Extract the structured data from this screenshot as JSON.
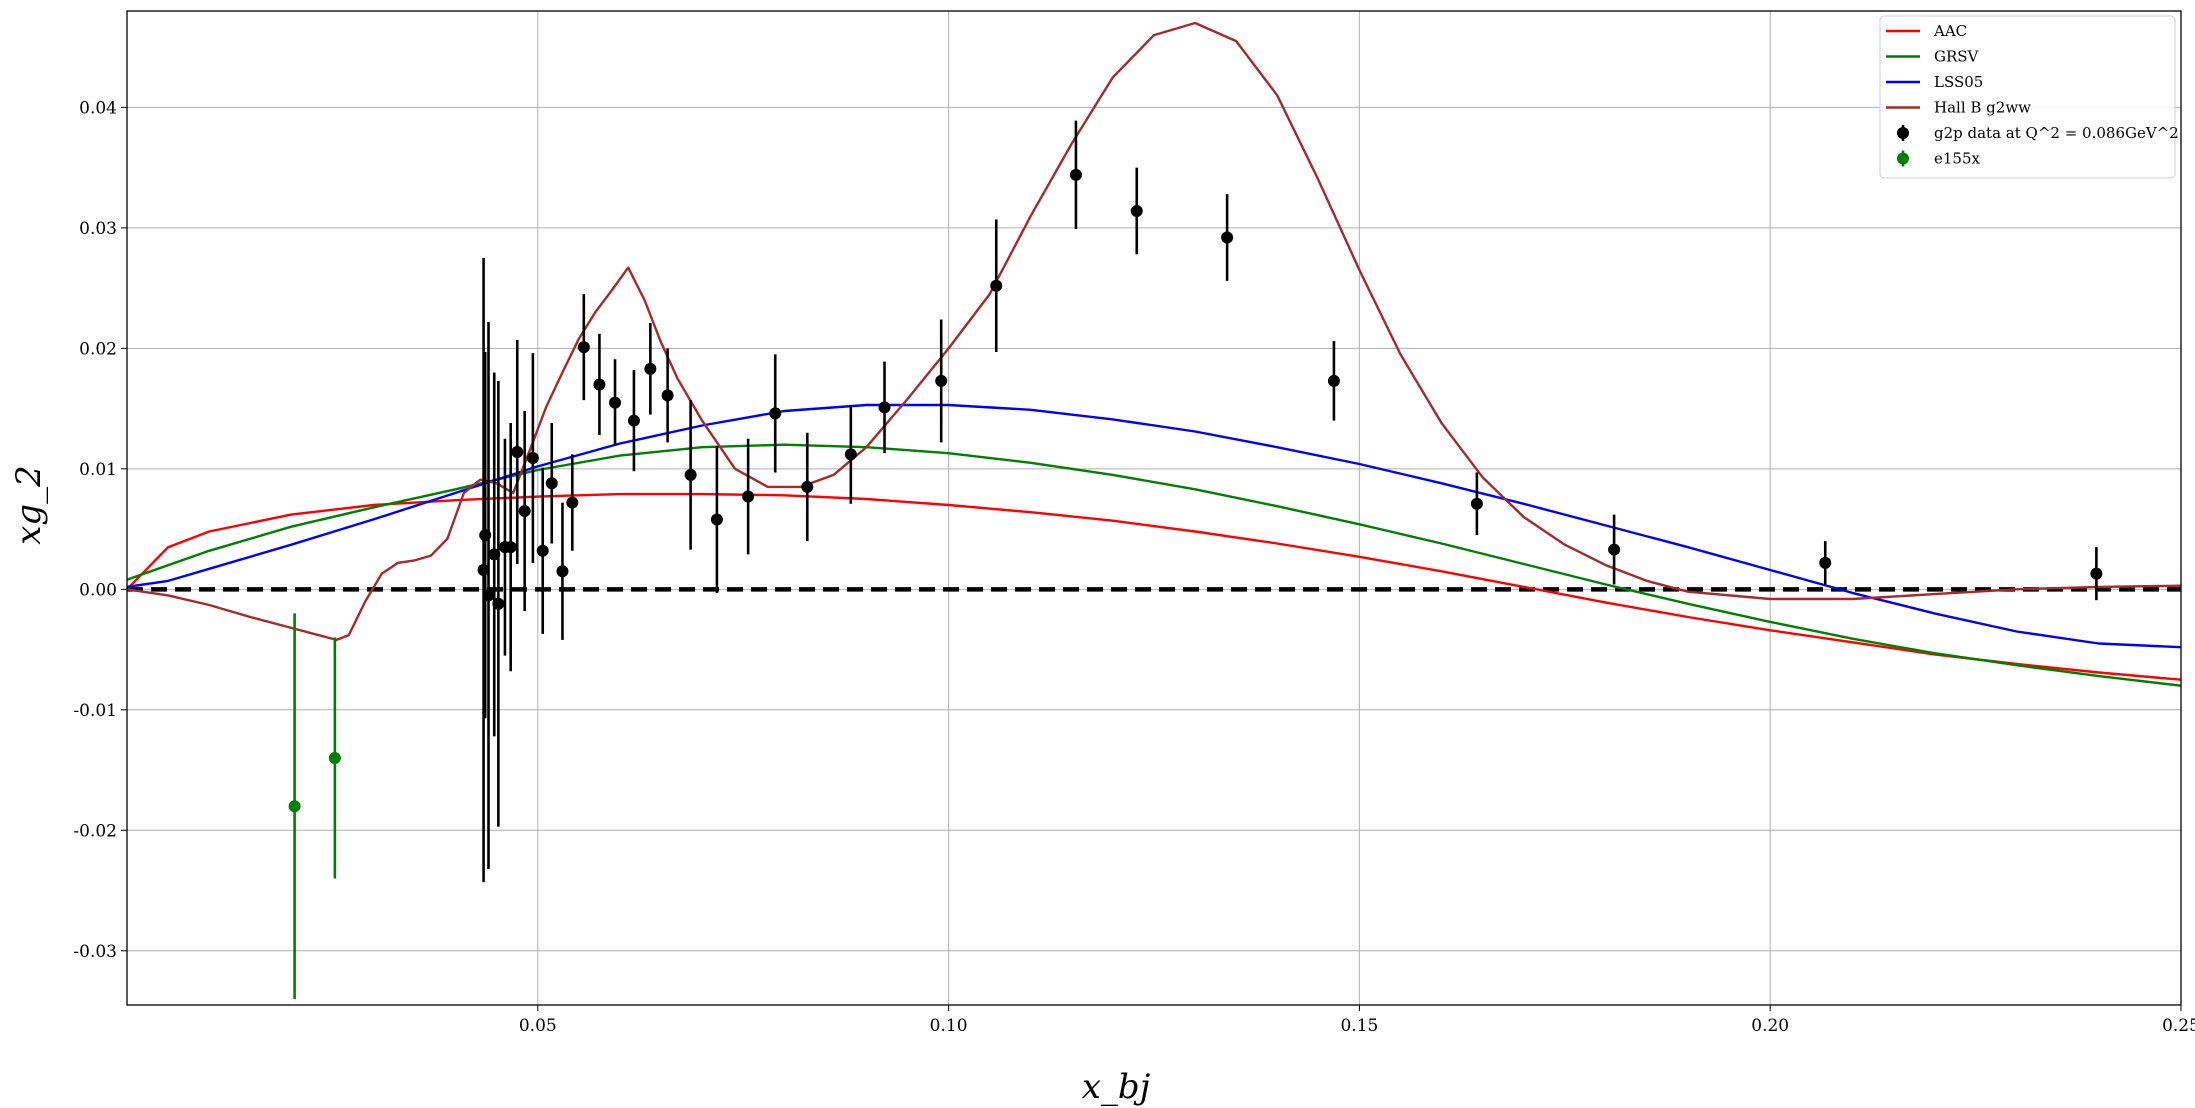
{
  "chart_data": {
    "type": "line",
    "title": "",
    "xlabel": "x_bj",
    "ylabel": "xg_2",
    "xlim": [
      0.0,
      0.25
    ],
    "ylim": [
      -0.0345,
      0.048
    ],
    "grid": true,
    "legend_position": "top-right",
    "x_ticks": [
      {
        "value": 0.05,
        "label": "0.05"
      },
      {
        "value": 0.1,
        "label": "0.10"
      },
      {
        "value": 0.15,
        "label": "0.15"
      },
      {
        "value": 0.2,
        "label": "0.20"
      },
      {
        "value": 0.25,
        "label": "0.25"
      }
    ],
    "y_ticks": [
      {
        "value": 0.04,
        "label": "0.04"
      },
      {
        "value": 0.03,
        "label": "0.03"
      },
      {
        "value": 0.02,
        "label": "0.02"
      },
      {
        "value": 0.01,
        "label": "0.01"
      },
      {
        "value": 0.0,
        "label": "0.00"
      },
      {
        "value": -0.01,
        "label": "-0.01"
      },
      {
        "value": -0.02,
        "label": "-0.02"
      },
      {
        "value": -0.03,
        "label": "-0.03"
      }
    ],
    "zero_line": {
      "y": 0.0,
      "color": "#000000",
      "style": "dashed"
    },
    "series": [
      {
        "name": "AAC",
        "kind": "line",
        "color": "#ff0000",
        "points": [
          [
            0.0,
            0.0
          ],
          [
            0.005,
            0.0035
          ],
          [
            0.01,
            0.0048
          ],
          [
            0.02,
            0.0062
          ],
          [
            0.03,
            0.007
          ],
          [
            0.04,
            0.0074
          ],
          [
            0.05,
            0.0077
          ],
          [
            0.06,
            0.0079
          ],
          [
            0.07,
            0.0079
          ],
          [
            0.08,
            0.0078
          ],
          [
            0.09,
            0.0075
          ],
          [
            0.1,
            0.007
          ],
          [
            0.11,
            0.0064
          ],
          [
            0.12,
            0.0057
          ],
          [
            0.13,
            0.0048
          ],
          [
            0.14,
            0.0038
          ],
          [
            0.15,
            0.0027
          ],
          [
            0.16,
            0.0015
          ],
          [
            0.17,
            0.0002
          ],
          [
            0.18,
            -0.0011
          ],
          [
            0.19,
            -0.0023
          ],
          [
            0.2,
            -0.0034
          ],
          [
            0.21,
            -0.0044
          ],
          [
            0.22,
            -0.0054
          ],
          [
            0.23,
            -0.0062
          ],
          [
            0.24,
            -0.0069
          ],
          [
            0.25,
            -0.0075
          ]
        ]
      },
      {
        "name": "GRSV",
        "kind": "line",
        "color": "#008000",
        "points": [
          [
            0.0,
            0.0008
          ],
          [
            0.01,
            0.0032
          ],
          [
            0.02,
            0.0052
          ],
          [
            0.03,
            0.0068
          ],
          [
            0.04,
            0.0083
          ],
          [
            0.05,
            0.0099
          ],
          [
            0.06,
            0.0111
          ],
          [
            0.07,
            0.0118
          ],
          [
            0.08,
            0.012
          ],
          [
            0.09,
            0.0118
          ],
          [
            0.1,
            0.0113
          ],
          [
            0.11,
            0.0105
          ],
          [
            0.12,
            0.0095
          ],
          [
            0.13,
            0.0083
          ],
          [
            0.14,
            0.0069
          ],
          [
            0.15,
            0.0054
          ],
          [
            0.16,
            0.0038
          ],
          [
            0.17,
            0.0021
          ],
          [
            0.18,
            0.0004
          ],
          [
            0.19,
            -0.0012
          ],
          [
            0.2,
            -0.0027
          ],
          [
            0.21,
            -0.0041
          ],
          [
            0.22,
            -0.0053
          ],
          [
            0.23,
            -0.0063
          ],
          [
            0.24,
            -0.0072
          ],
          [
            0.25,
            -0.008
          ]
        ]
      },
      {
        "name": "LSS05",
        "kind": "line",
        "color": "#0000ff",
        "points": [
          [
            0.0,
            0.0002
          ],
          [
            0.005,
            0.0007
          ],
          [
            0.01,
            0.0017
          ],
          [
            0.02,
            0.0037
          ],
          [
            0.03,
            0.0058
          ],
          [
            0.04,
            0.008
          ],
          [
            0.05,
            0.0102
          ],
          [
            0.06,
            0.0121
          ],
          [
            0.07,
            0.0136
          ],
          [
            0.08,
            0.0148
          ],
          [
            0.09,
            0.0153
          ],
          [
            0.1,
            0.0153
          ],
          [
            0.11,
            0.0149
          ],
          [
            0.12,
            0.0141
          ],
          [
            0.13,
            0.0131
          ],
          [
            0.14,
            0.0118
          ],
          [
            0.15,
            0.0104
          ],
          [
            0.16,
            0.0088
          ],
          [
            0.17,
            0.0071
          ],
          [
            0.18,
            0.0053
          ],
          [
            0.19,
            0.0035
          ],
          [
            0.2,
            0.0016
          ],
          [
            0.21,
            -0.0003
          ],
          [
            0.22,
            -0.002
          ],
          [
            0.23,
            -0.0035
          ],
          [
            0.24,
            -0.0045
          ],
          [
            0.25,
            -0.0048
          ]
        ]
      },
      {
        "name": "Hall B g2ww",
        "kind": "line",
        "color": "#a52a2a",
        "points": [
          [
            0.0,
            0.0
          ],
          [
            0.005,
            -0.0005
          ],
          [
            0.01,
            -0.0013
          ],
          [
            0.015,
            -0.0023
          ],
          [
            0.02,
            -0.0032
          ],
          [
            0.0255,
            -0.0042
          ],
          [
            0.027,
            -0.0038
          ],
          [
            0.029,
            -0.001
          ],
          [
            0.031,
            0.0013
          ],
          [
            0.033,
            0.0022
          ],
          [
            0.035,
            0.0024
          ],
          [
            0.037,
            0.0028
          ],
          [
            0.039,
            0.0042
          ],
          [
            0.041,
            0.008
          ],
          [
            0.043,
            0.0091
          ],
          [
            0.045,
            0.0088
          ],
          [
            0.047,
            0.008
          ],
          [
            0.049,
            0.0115
          ],
          [
            0.051,
            0.0151
          ],
          [
            0.053,
            0.018
          ],
          [
            0.055,
            0.0208
          ],
          [
            0.057,
            0.023
          ],
          [
            0.059,
            0.0248
          ],
          [
            0.061,
            0.0267
          ],
          [
            0.063,
            0.024
          ],
          [
            0.065,
            0.0205
          ],
          [
            0.067,
            0.0175
          ],
          [
            0.07,
            0.014
          ],
          [
            0.074,
            0.01
          ],
          [
            0.078,
            0.0085
          ],
          [
            0.082,
            0.0085
          ],
          [
            0.086,
            0.0095
          ],
          [
            0.09,
            0.0118
          ],
          [
            0.095,
            0.0158
          ],
          [
            0.1,
            0.02
          ],
          [
            0.105,
            0.0245
          ],
          [
            0.11,
            0.031
          ],
          [
            0.115,
            0.037
          ],
          [
            0.12,
            0.0425
          ],
          [
            0.125,
            0.046
          ],
          [
            0.13,
            0.047
          ],
          [
            0.135,
            0.0455
          ],
          [
            0.14,
            0.041
          ],
          [
            0.145,
            0.034
          ],
          [
            0.15,
            0.0265
          ],
          [
            0.155,
            0.0195
          ],
          [
            0.16,
            0.0138
          ],
          [
            0.165,
            0.0093
          ],
          [
            0.17,
            0.006
          ],
          [
            0.175,
            0.0037
          ],
          [
            0.18,
            0.002
          ],
          [
            0.185,
            0.0007
          ],
          [
            0.19,
            -0.0002
          ],
          [
            0.2,
            -0.0008
          ],
          [
            0.21,
            -0.0008
          ],
          [
            0.22,
            -0.0004
          ],
          [
            0.23,
            0.0
          ],
          [
            0.24,
            0.0002
          ],
          [
            0.25,
            0.0003
          ]
        ]
      },
      {
        "name": "g2p data at Q^2 = 0.086GeV^2",
        "kind": "errorbar",
        "color": "#000000",
        "points": [
          [
            0.0434,
            0.0016,
            0.0259
          ],
          [
            0.0436,
            0.0045,
            0.0152
          ],
          [
            0.044,
            -0.0005,
            0.0227
          ],
          [
            0.0447,
            0.0029,
            0.0151
          ],
          [
            0.0452,
            -0.0012,
            0.0185
          ],
          [
            0.046,
            0.0035,
            0.009
          ],
          [
            0.0467,
            0.0035,
            0.0103
          ],
          [
            0.0475,
            0.0114,
            0.0093
          ],
          [
            0.0484,
            0.0065,
            0.0083
          ],
          [
            0.0494,
            0.0109,
            0.0087
          ],
          [
            0.0506,
            0.0032,
            0.0069
          ],
          [
            0.0517,
            0.0088,
            0.005
          ],
          [
            0.053,
            0.0015,
            0.0057
          ],
          [
            0.0542,
            0.0072,
            0.004
          ],
          [
            0.0556,
            0.0201,
            0.0044
          ],
          [
            0.0575,
            0.017,
            0.0042
          ],
          [
            0.0594,
            0.0155,
            0.0036
          ],
          [
            0.0617,
            0.014,
            0.0042
          ],
          [
            0.0637,
            0.0183,
            0.0038
          ],
          [
            0.0658,
            0.0161,
            0.0039
          ],
          [
            0.0686,
            0.0095,
            0.0062
          ],
          [
            0.0718,
            0.0058,
            0.0061
          ],
          [
            0.0756,
            0.0077,
            0.0048
          ],
          [
            0.0789,
            0.0146,
            0.0049
          ],
          [
            0.0828,
            0.0085,
            0.0045
          ],
          [
            0.0881,
            0.0112,
            0.0041
          ],
          [
            0.0922,
            0.0151,
            0.0038
          ],
          [
            0.0991,
            0.0173,
            0.0051
          ],
          [
            0.1058,
            0.0252,
            0.0055
          ],
          [
            0.1155,
            0.0344,
            0.0045
          ],
          [
            0.1229,
            0.0314,
            0.0036
          ],
          [
            0.1339,
            0.0292,
            0.0036
          ],
          [
            0.1469,
            0.0173,
            0.0033
          ],
          [
            0.1643,
            0.0071,
            0.0026
          ],
          [
            0.181,
            0.0033,
            0.0029
          ],
          [
            0.2067,
            0.0022,
            0.0018
          ],
          [
            0.2397,
            0.0013,
            0.0022
          ]
        ]
      },
      {
        "name": "e155x",
        "kind": "errorbar",
        "color": "#008000",
        "points": [
          [
            0.0204,
            -0.018,
            0.016
          ],
          [
            0.0253,
            -0.014,
            0.01
          ]
        ]
      }
    ]
  }
}
